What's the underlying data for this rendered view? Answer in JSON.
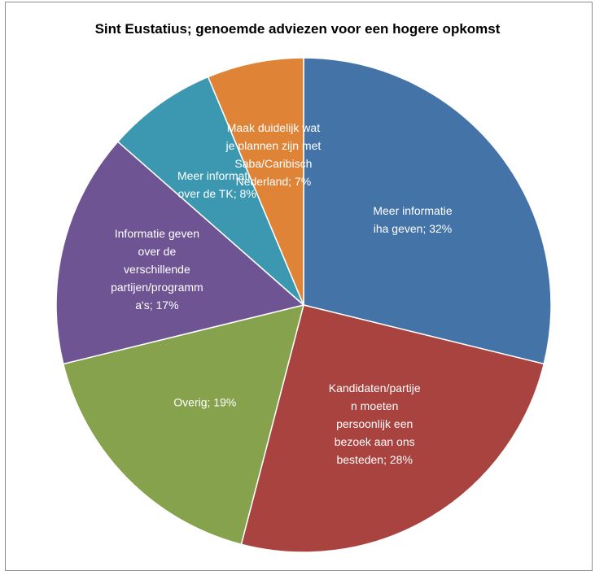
{
  "chart_data": {
    "type": "pie",
    "title": "Sint Eustatius; genoemde adviezen voor een hogere opkomst",
    "categories": [
      "Meer informatie iha geven",
      "Kandidaten/partijen moeten persoonlijk een bezoek aan ons besteden",
      "Overig",
      "Informatie geven over de verschillende partijen/programma's",
      "Meer informatie over de TK",
      "Maak duidelijk wat je plannen zijn met Saba/Caribisch Nederland"
    ],
    "values": [
      32,
      28,
      19,
      17,
      8,
      7
    ],
    "colors": [
      "#4473a7",
      "#a9433f",
      "#86a24d",
      "#6f5494",
      "#3c98b0",
      "#df8437"
    ],
    "labels": [
      [
        "Meer informatie",
        "iha geven; 32%"
      ],
      [
        "Kandidaten/partije",
        "n moeten",
        "persoonlijk een",
        "bezoek aan ons",
        "besteden; 28%"
      ],
      [
        "Overig; 19%"
      ],
      [
        "Informatie geven",
        "over de",
        "verschillende",
        "partijen/programm",
        "a's; 17%"
      ],
      [
        "Meer informatie",
        "over de TK; 8%"
      ],
      [
        "Maak duidelijk wat",
        "je plannen zijn met",
        "Saba/Caribisch",
        "Nederland; 7%"
      ]
    ],
    "legend": "none"
  }
}
